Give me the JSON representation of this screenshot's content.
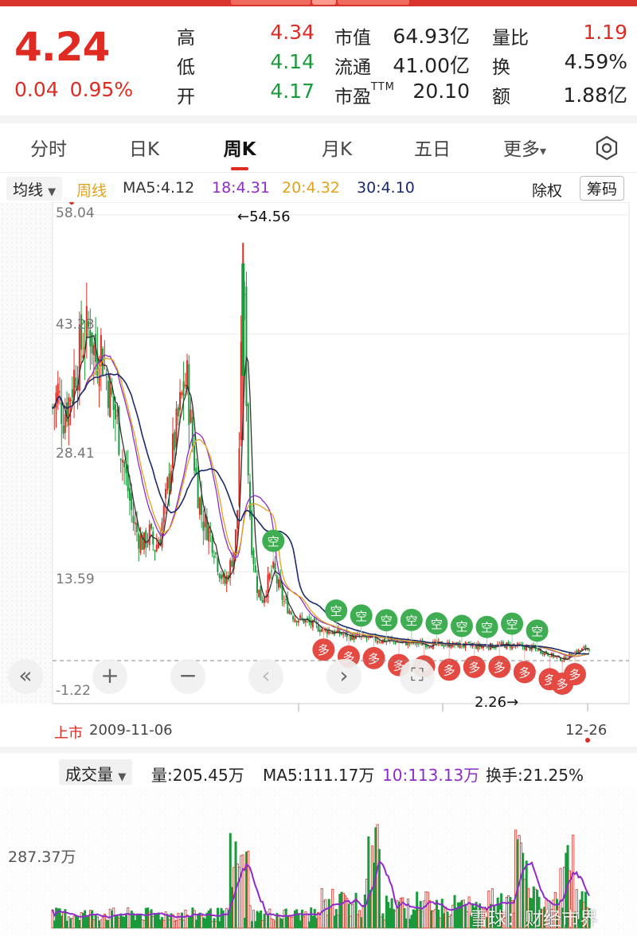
{
  "quote": {
    "price": "4.24",
    "change": "0.04",
    "change_pct": "0.95%",
    "rows": [
      [
        {
          "label": "高",
          "value": "4.34",
          "color": "red"
        },
        {
          "label": "市值",
          "value": "64.93亿",
          "color": "dark"
        },
        {
          "label": "量比",
          "value": "1.19",
          "color": "red"
        }
      ],
      [
        {
          "label": "低",
          "value": "4.14",
          "color": "green"
        },
        {
          "label": "流通",
          "value": "41.00亿",
          "color": "dark"
        },
        {
          "label": "换",
          "value": "4.59%",
          "color": "dark"
        }
      ],
      [
        {
          "label": "开",
          "value": "4.17",
          "color": "green"
        },
        {
          "label": "市盈",
          "label_sup": "TTM",
          "value": "20.10",
          "color": "dark"
        },
        {
          "label": "额",
          "value": "1.88亿",
          "color": "dark"
        }
      ]
    ]
  },
  "tabs": [
    "分时",
    "日K",
    "周K",
    "月K",
    "五日",
    "更多"
  ],
  "active_tab": "周K",
  "more_arrow": "▾",
  "indicator": {
    "selector": "均线",
    "period": "周线",
    "ma5": "MA5:4.12",
    "ma18": "18:4.31",
    "ma20": "20:4.32",
    "ma30": "30:4.10",
    "exright_btn": "除权",
    "chips_btn": "筹码"
  },
  "chart": {
    "y_labels": [
      "58.04",
      "43.23",
      "28.41",
      "13.59",
      "-1.22"
    ],
    "high_note": "←54.56",
    "low_note": "2.26→",
    "start_label": "上市",
    "start_date": "2009-11-06",
    "end_date": "12-26",
    "marker_buy": "多",
    "marker_sell": "空",
    "controls": {
      "left_fast": "«",
      "zoom_in": "+",
      "zoom_out": "−",
      "prev": "‹",
      "next": "›",
      "fullscreen": "⛶"
    }
  },
  "volume": {
    "selector": "成交量",
    "vol": "量:205.45万",
    "ma5": "MA5:111.17万",
    "ma10": "10:113.13万",
    "turnover": "换手:21.25%",
    "y_label": "287.37万"
  },
  "watermark": "雪球：财经市界",
  "colors": {
    "up": "#e02b22",
    "down": "#1a9a3a",
    "ma5": "#333333",
    "ma18": "#8e2bc9",
    "ma20": "#e3a21a",
    "ma30": "#1b2a6b"
  },
  "chart_data": {
    "type": "candlestick",
    "title": "",
    "y_range": [
      -1.22,
      58.04
    ],
    "x_range": [
      "2009-11-06",
      "12-26"
    ],
    "price_path": [
      [
        0,
        34
      ],
      [
        0.01,
        36
      ],
      [
        0.02,
        33
      ],
      [
        0.03,
        35
      ],
      [
        0.04,
        38
      ],
      [
        0.05,
        41
      ],
      [
        0.06,
        43
      ],
      [
        0.07,
        44
      ],
      [
        0.08,
        40
      ],
      [
        0.09,
        42
      ],
      [
        0.1,
        38
      ],
      [
        0.11,
        35
      ],
      [
        0.12,
        32
      ],
      [
        0.13,
        28
      ],
      [
        0.14,
        24
      ],
      [
        0.15,
        20
      ],
      [
        0.16,
        18
      ],
      [
        0.17,
        17
      ],
      [
        0.18,
        18.5
      ],
      [
        0.19,
        16.5
      ],
      [
        0.2,
        18
      ],
      [
        0.21,
        22
      ],
      [
        0.22,
        27
      ],
      [
        0.23,
        31
      ],
      [
        0.24,
        35
      ],
      [
        0.25,
        38
      ],
      [
        0.26,
        30
      ],
      [
        0.27,
        24
      ],
      [
        0.28,
        20
      ],
      [
        0.29,
        19
      ],
      [
        0.3,
        17
      ],
      [
        0.31,
        14
      ],
      [
        0.32,
        12
      ],
      [
        0.33,
        14
      ],
      [
        0.34,
        17
      ],
      [
        0.345,
        22
      ],
      [
        0.35,
        35
      ],
      [
        0.355,
        52
      ],
      [
        0.36,
        40
      ],
      [
        0.365,
        25
      ],
      [
        0.37,
        18
      ],
      [
        0.38,
        12
      ],
      [
        0.39,
        10
      ],
      [
        0.4,
        12
      ],
      [
        0.41,
        14
      ],
      [
        0.42,
        12
      ],
      [
        0.43,
        10
      ],
      [
        0.44,
        9
      ],
      [
        0.45,
        8
      ],
      [
        0.47,
        7.5
      ],
      [
        0.5,
        6.5
      ],
      [
        0.53,
        6
      ],
      [
        0.56,
        5.5
      ],
      [
        0.6,
        5.2
      ],
      [
        0.65,
        4.8
      ],
      [
        0.7,
        4.6
      ],
      [
        0.75,
        4.5
      ],
      [
        0.8,
        4.3
      ],
      [
        0.85,
        4.5
      ],
      [
        0.9,
        4.0
      ],
      [
        0.93,
        3.2
      ],
      [
        0.95,
        2.6
      ],
      [
        0.97,
        3.5
      ],
      [
        0.99,
        4.0
      ],
      [
        1.0,
        4.24
      ]
    ],
    "notes": {
      "high": 54.56,
      "low": 2.26
    }
  }
}
